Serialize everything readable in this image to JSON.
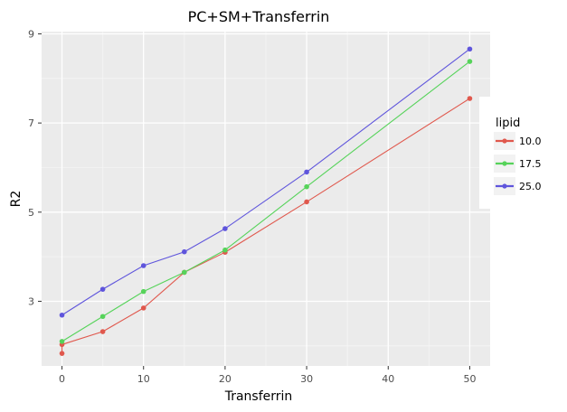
{
  "chart_data": {
    "type": "line",
    "title": "PC+SM+Transferrin",
    "xlabel": "Transferrin",
    "ylabel": "R2",
    "xlim": [
      -2.5,
      52.5
    ],
    "ylim": [
      1.55,
      9.05
    ],
    "xticks": [
      0,
      10,
      20,
      30,
      40,
      50
    ],
    "yticks": [
      3,
      5,
      7,
      9
    ],
    "xtick_labels": [
      "0",
      "10",
      "20",
      "30",
      "40",
      "50"
    ],
    "ytick_labels": [
      "3",
      "5",
      "7",
      "9"
    ],
    "grid": true,
    "legend": {
      "title": "lipid",
      "placement": "right",
      "entries": [
        "10.0",
        "17.5",
        "25.0"
      ]
    },
    "series": [
      {
        "name": "10.0",
        "color": "#e0584d",
        "points": [
          [
            0,
            1.83
          ],
          [
            0,
            2.03
          ],
          [
            5,
            2.32
          ],
          [
            10,
            2.85
          ],
          [
            15,
            3.65
          ],
          [
            20,
            4.1
          ],
          [
            30,
            5.23
          ],
          [
            50,
            7.55
          ]
        ]
      },
      {
        "name": "17.5",
        "color": "#56d35a",
        "points": [
          [
            0,
            2.1
          ],
          [
            5,
            2.66
          ],
          [
            10,
            3.22
          ],
          [
            15,
            3.65
          ],
          [
            20,
            4.15
          ],
          [
            30,
            5.57
          ],
          [
            50,
            8.38
          ]
        ]
      },
      {
        "name": "25.0",
        "color": "#5f55dc",
        "points": [
          [
            0,
            2.69
          ],
          [
            5,
            3.27
          ],
          [
            10,
            3.8
          ],
          [
            15,
            4.11
          ],
          [
            20,
            4.63
          ],
          [
            30,
            5.9
          ],
          [
            50,
            8.66
          ]
        ]
      }
    ]
  }
}
